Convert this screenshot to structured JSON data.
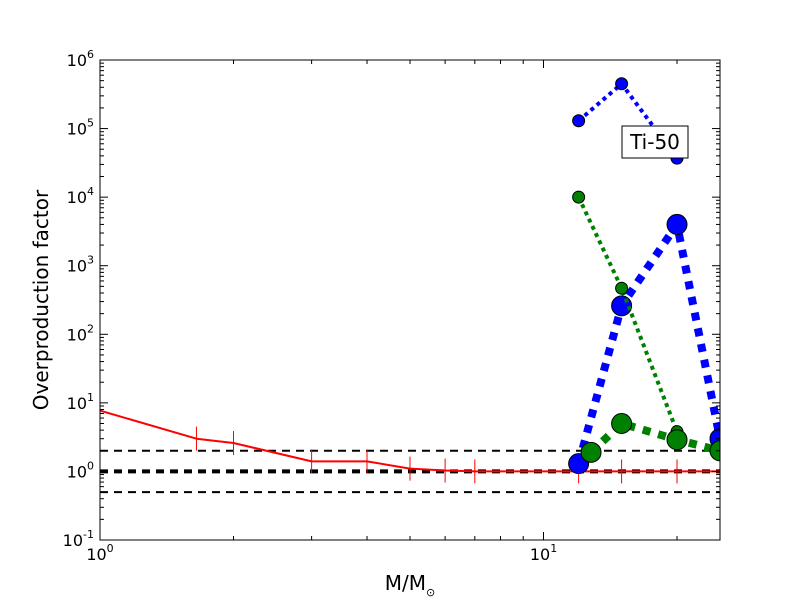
{
  "chart_data": {
    "type": "line",
    "title": "",
    "xlabel": "M/M",
    "xlabel_sub": "⊙",
    "ylabel": "Overproduction factor",
    "xscale": "log",
    "yscale": "log",
    "xlim": [
      1,
      25
    ],
    "ylim": [
      0.1,
      1000000
    ],
    "grid": false,
    "legend": "none",
    "x_ticks": [
      {
        "value": 1,
        "base": "10",
        "exp": "0"
      },
      {
        "value": 10,
        "base": "10",
        "exp": "1"
      }
    ],
    "y_ticks": [
      {
        "value": 0.1,
        "base": "10",
        "exp": "-1"
      },
      {
        "value": 1,
        "base": "10",
        "exp": "0"
      },
      {
        "value": 10,
        "base": "10",
        "exp": "1"
      },
      {
        "value": 100,
        "base": "10",
        "exp": "2"
      },
      {
        "value": 1000,
        "base": "10",
        "exp": "3"
      },
      {
        "value": 10000,
        "base": "10",
        "exp": "4"
      },
      {
        "value": 100000,
        "base": "10",
        "exp": "5"
      },
      {
        "value": 1000000,
        "base": "10",
        "exp": "6"
      }
    ],
    "annotation": "Ti-50",
    "hlines": [
      {
        "y": 2,
        "color": "#000000",
        "style": "dashed",
        "width": 2
      },
      {
        "y": 1,
        "color": "#000000",
        "style": "dashed",
        "width": 4
      },
      {
        "y": 0.5,
        "color": "#000000",
        "style": "dashed",
        "width": 2
      }
    ],
    "series": [
      {
        "color": "#ff0000",
        "style": "solid",
        "width": 2,
        "marker": "tick",
        "x": [
          1,
          1.65,
          2,
          3,
          4,
          5,
          6,
          7,
          12,
          15,
          20,
          25
        ],
        "y": [
          7.7,
          3.0,
          2.6,
          1.4,
          1.4,
          1.1,
          1.03,
          1.0,
          1.0,
          1.0,
          1.0,
          1.0
        ]
      },
      {
        "color": "#0000ff",
        "style": "dotted",
        "width": 4,
        "marker": "circle",
        "marker_size": 6,
        "x": [
          12,
          15,
          20
        ],
        "y": [
          130000,
          450000,
          37000
        ]
      },
      {
        "color": "#0000ff",
        "style": "dotted",
        "width": 8,
        "marker": "circle",
        "marker_size": 10,
        "x": [
          12,
          15,
          20,
          25
        ],
        "y": [
          1.3,
          260,
          4000,
          3.0
        ]
      },
      {
        "color": "#008000",
        "style": "dotted",
        "width": 4,
        "marker": "circle",
        "marker_size": 6,
        "x": [
          12,
          15,
          20
        ],
        "y": [
          10000,
          470,
          3.8
        ]
      },
      {
        "color": "#008000",
        "style": "dotted",
        "width": 8,
        "marker": "circle",
        "marker_size": 10,
        "x": [
          12.8,
          15,
          20,
          25
        ],
        "y": [
          1.9,
          5.0,
          2.9,
          2.0
        ]
      }
    ]
  }
}
